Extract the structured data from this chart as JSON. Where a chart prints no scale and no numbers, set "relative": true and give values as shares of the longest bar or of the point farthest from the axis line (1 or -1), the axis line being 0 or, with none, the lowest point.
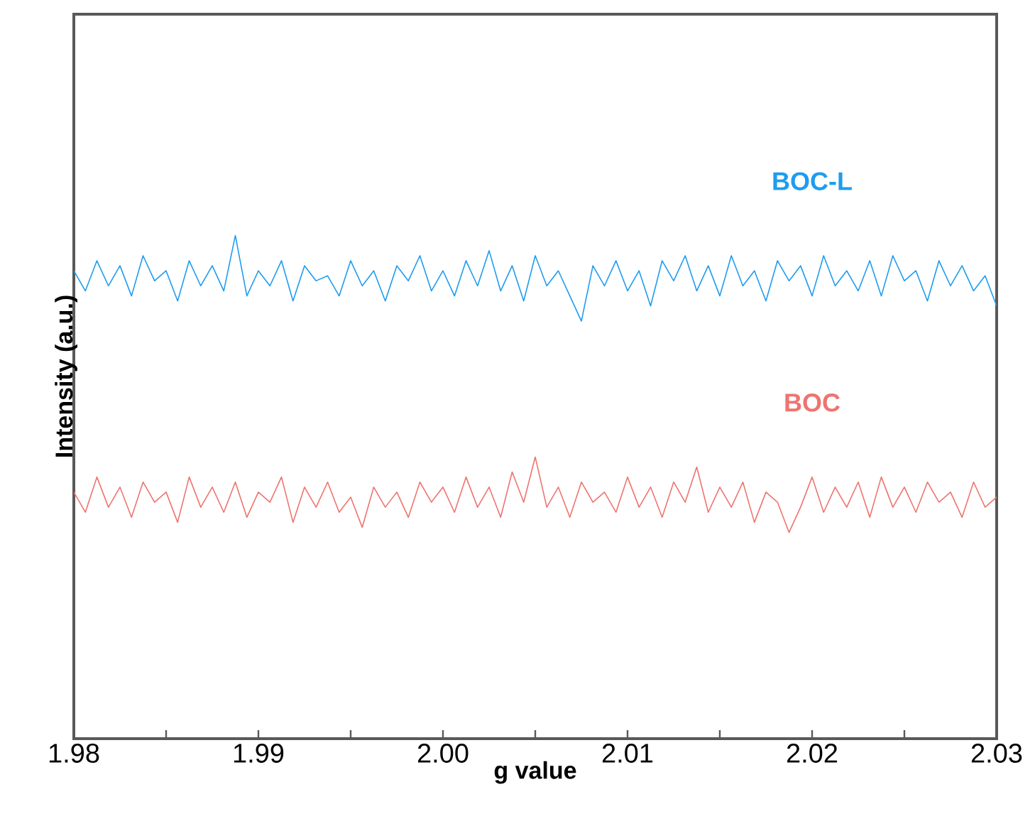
{
  "chart_data": {
    "type": "line",
    "xlabel": "g value",
    "ylabel": "Intensity (a.u.)",
    "relative": true,
    "xlim": [
      1.98,
      2.03
    ],
    "xticks": [
      1.98,
      {
        "value": 1.985,
        "label": null
      },
      1.99,
      {
        "value": 1.995,
        "label": null
      },
      {
        "value": 2.0,
        "label": "2.00"
      },
      {
        "value": 2.005,
        "label": null
      },
      2.01,
      {
        "value": 2.015,
        "label": null
      },
      2.02,
      {
        "value": 2.025,
        "label": null
      },
      2.03
    ],
    "x": [
      1.98,
      1.980625,
      1.98125,
      1.981875,
      1.9825,
      1.983125,
      1.98375,
      1.984375,
      1.985,
      1.985625,
      1.98625,
      1.986875,
      1.9875,
      1.988125,
      1.98875,
      1.989375,
      1.99,
      1.990625,
      1.99125,
      1.991875,
      1.9925,
      1.993125,
      1.99375,
      1.994375,
      1.995,
      1.995625,
      1.99625,
      1.996875,
      1.9975,
      1.998125,
      1.99875,
      1.999375,
      2.0,
      2.000625,
      2.00125,
      2.001875,
      2.0025,
      2.003125,
      2.00375,
      2.004375,
      2.005,
      2.005625,
      2.00625,
      2.006875,
      2.0075,
      2.008125,
      2.00875,
      2.009375,
      2.01,
      2.010625,
      2.01125,
      2.011875,
      2.0125,
      2.013125,
      2.01375,
      2.014375,
      2.015,
      2.015625,
      2.01625,
      2.016875,
      2.0175,
      2.018125,
      2.01875,
      2.019375,
      2.02,
      2.020625,
      2.02125,
      2.021875,
      2.0225,
      2.023125,
      2.02375,
      2.024375,
      2.025,
      2.025625,
      2.02625,
      2.026875,
      2.0275,
      2.028125,
      2.02875,
      2.029375,
      2.03
    ],
    "series": [
      {
        "name": "BOC-L",
        "color": "#1e9cf0",
        "values": [
          0.93,
          0.89,
          0.95,
          0.9,
          0.94,
          0.88,
          0.96,
          0.91,
          0.93,
          0.87,
          0.95,
          0.9,
          0.94,
          0.89,
          1.0,
          0.88,
          0.93,
          0.9,
          0.95,
          0.87,
          0.94,
          0.91,
          0.92,
          0.88,
          0.95,
          0.9,
          0.93,
          0.87,
          0.94,
          0.91,
          0.96,
          0.89,
          0.93,
          0.88,
          0.95,
          0.9,
          0.97,
          0.89,
          0.94,
          0.87,
          0.96,
          0.9,
          0.93,
          0.88,
          0.83,
          0.94,
          0.9,
          0.95,
          0.89,
          0.93,
          0.86,
          0.95,
          0.91,
          0.96,
          0.89,
          0.94,
          0.88,
          0.96,
          0.9,
          0.93,
          0.87,
          0.95,
          0.91,
          0.94,
          0.88,
          0.96,
          0.9,
          0.93,
          0.89,
          0.95,
          0.88,
          0.96,
          0.91,
          0.93,
          0.87,
          0.95,
          0.9,
          0.94,
          0.89,
          0.92,
          0.86
        ]
      },
      {
        "name": "BOC",
        "color": "#ee7470",
        "values": [
          0.49,
          0.45,
          0.52,
          0.46,
          0.5,
          0.44,
          0.51,
          0.47,
          0.49,
          0.43,
          0.52,
          0.46,
          0.5,
          0.45,
          0.51,
          0.44,
          0.49,
          0.47,
          0.52,
          0.43,
          0.5,
          0.46,
          0.51,
          0.45,
          0.48,
          0.42,
          0.5,
          0.46,
          0.49,
          0.44,
          0.51,
          0.47,
          0.5,
          0.45,
          0.52,
          0.46,
          0.5,
          0.44,
          0.53,
          0.47,
          0.56,
          0.46,
          0.5,
          0.44,
          0.51,
          0.47,
          0.49,
          0.45,
          0.52,
          0.46,
          0.5,
          0.44,
          0.51,
          0.47,
          0.54,
          0.45,
          0.5,
          0.46,
          0.51,
          0.43,
          0.49,
          0.47,
          0.41,
          0.46,
          0.52,
          0.45,
          0.5,
          0.46,
          0.51,
          0.44,
          0.52,
          0.46,
          0.5,
          0.45,
          0.51,
          0.47,
          0.49,
          0.44,
          0.51,
          0.46,
          0.48
        ]
      }
    ]
  }
}
